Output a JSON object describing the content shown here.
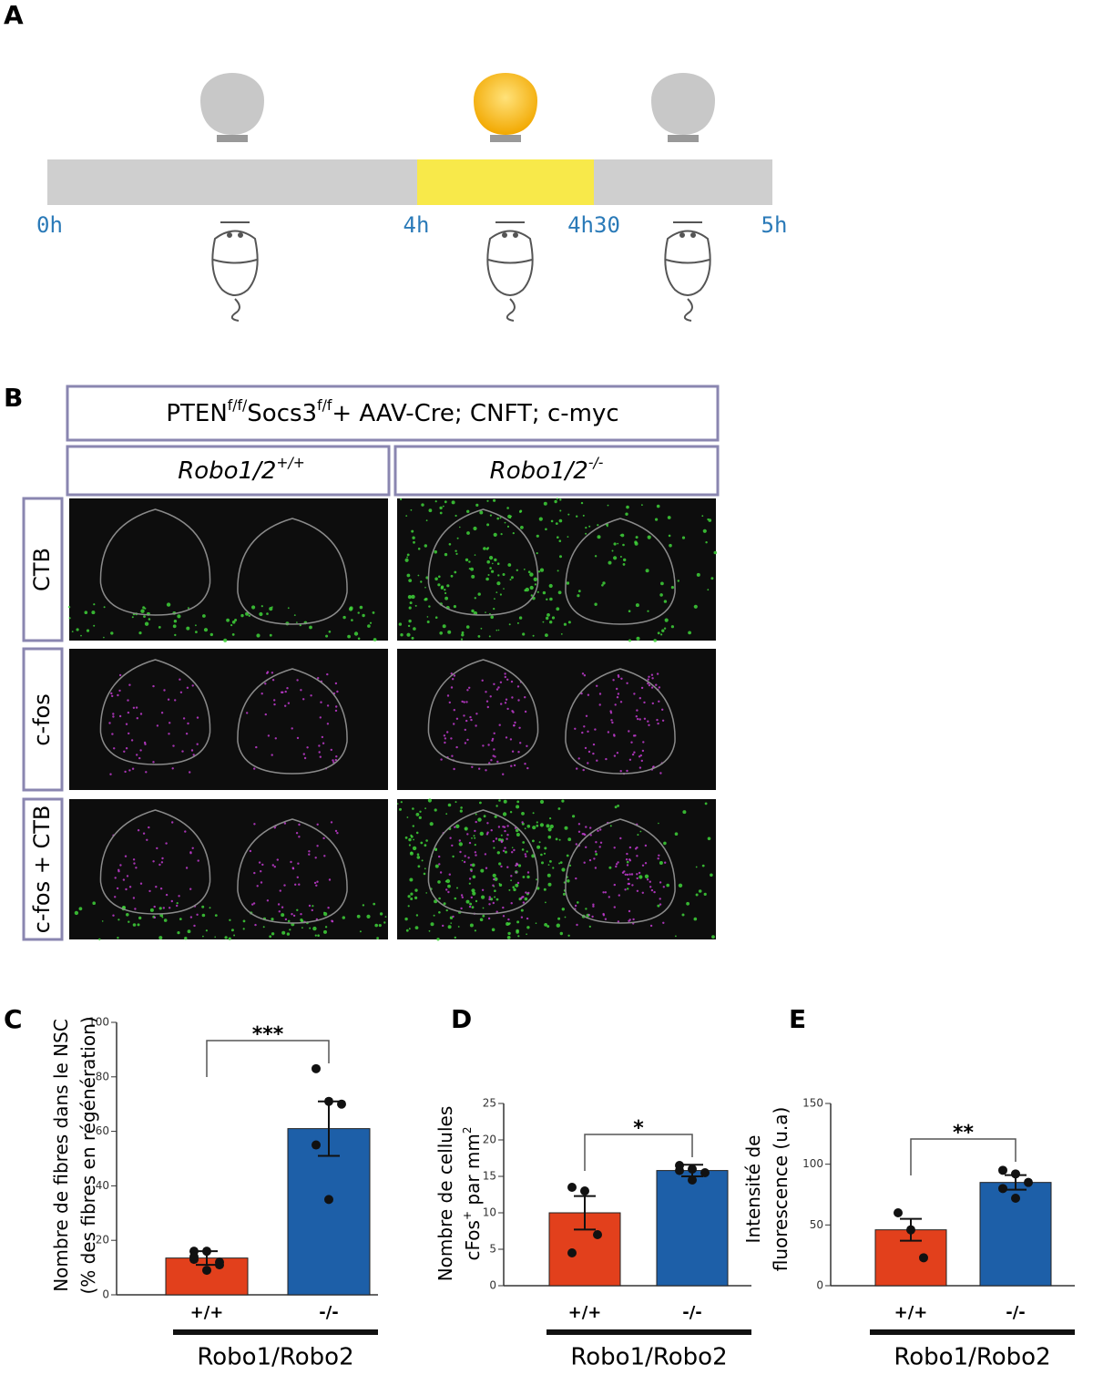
{
  "panel_a": {
    "label": "A",
    "times": [
      "0h",
      "4h",
      "4h30",
      "5h"
    ]
  },
  "panel_b": {
    "label": "B",
    "header": [
      {
        "text": "PTEN"
      },
      {
        "text": "f/f/",
        "sup": true
      },
      {
        "text": "Socs3"
      },
      {
        "text": "f/f",
        "sup": true
      },
      {
        "text": "+ AAV-Cre; CNFT; c-myc"
      }
    ],
    "columns": [
      [
        {
          "text": "Robo1/2"
        },
        {
          "text": "+/+",
          "sup": true
        }
      ],
      [
        {
          "text": "Robo1/2"
        },
        {
          "text": "-/-",
          "sup": true
        }
      ]
    ],
    "rows": [
      "CTB",
      "c-fos",
      "c-fos + CTB"
    ]
  },
  "chart_data": [
    {
      "type": "bar",
      "panel": "C",
      "ylabel": [
        [
          {
            "text": "Nombre de fibres dans le NSC"
          }
        ],
        [
          {
            "text": "(% des fibres en régénération)"
          }
        ]
      ],
      "categories": [
        "+/+",
        "-/-"
      ],
      "group_label": "Robo1/Robo2",
      "values": [
        13.5,
        61
      ],
      "errors": [
        2.5,
        10
      ],
      "points": [
        [
          16,
          16,
          12,
          13,
          9,
          11,
          14
        ],
        [
          83,
          71,
          70,
          55,
          35
        ]
      ],
      "colors": [
        "#e2401c",
        "#1d5fa8"
      ],
      "significance": "***",
      "ylim": [
        0,
        100
      ],
      "yticks": [
        0,
        20,
        40,
        60,
        80,
        100
      ]
    },
    {
      "type": "bar",
      "panel": "D",
      "ylabel": [
        [
          {
            "text": "Nombre de cellules"
          }
        ],
        [
          {
            "text": "cFos"
          },
          {
            "text": "+",
            "sup": true
          },
          {
            "text": " par mm"
          },
          {
            "text": "2",
            "sup": true
          }
        ]
      ],
      "categories": [
        "+/+",
        "-/-"
      ],
      "group_label": "Robo1/Robo2",
      "values": [
        10,
        15.8
      ],
      "errors": [
        2.3,
        0.8
      ],
      "points": [
        [
          13.5,
          13,
          7,
          4.5
        ],
        [
          16.5,
          16,
          15.5,
          15.8,
          14.5
        ]
      ],
      "colors": [
        "#e2401c",
        "#1d5fa8"
      ],
      "significance": "*",
      "ylim": [
        0,
        25
      ],
      "yticks": [
        0,
        5,
        10,
        15,
        20,
        25
      ]
    },
    {
      "type": "bar",
      "panel": "E",
      "ylabel": [
        [
          {
            "text": "Intensité de"
          }
        ],
        [
          {
            "text": "fluorescence (u.a)"
          }
        ]
      ],
      "categories": [
        "+/+",
        "-/-"
      ],
      "group_label": "Robo1/Robo2",
      "values": [
        46,
        85
      ],
      "errors": [
        9,
        6
      ],
      "points": [
        [
          60,
          46,
          23
        ],
        [
          95,
          92,
          85,
          80,
          72
        ]
      ],
      "colors": [
        "#e2401c",
        "#1d5fa8"
      ],
      "significance": "**",
      "ylim": [
        0,
        150
      ],
      "yticks": [
        0,
        50,
        100,
        150
      ]
    }
  ]
}
